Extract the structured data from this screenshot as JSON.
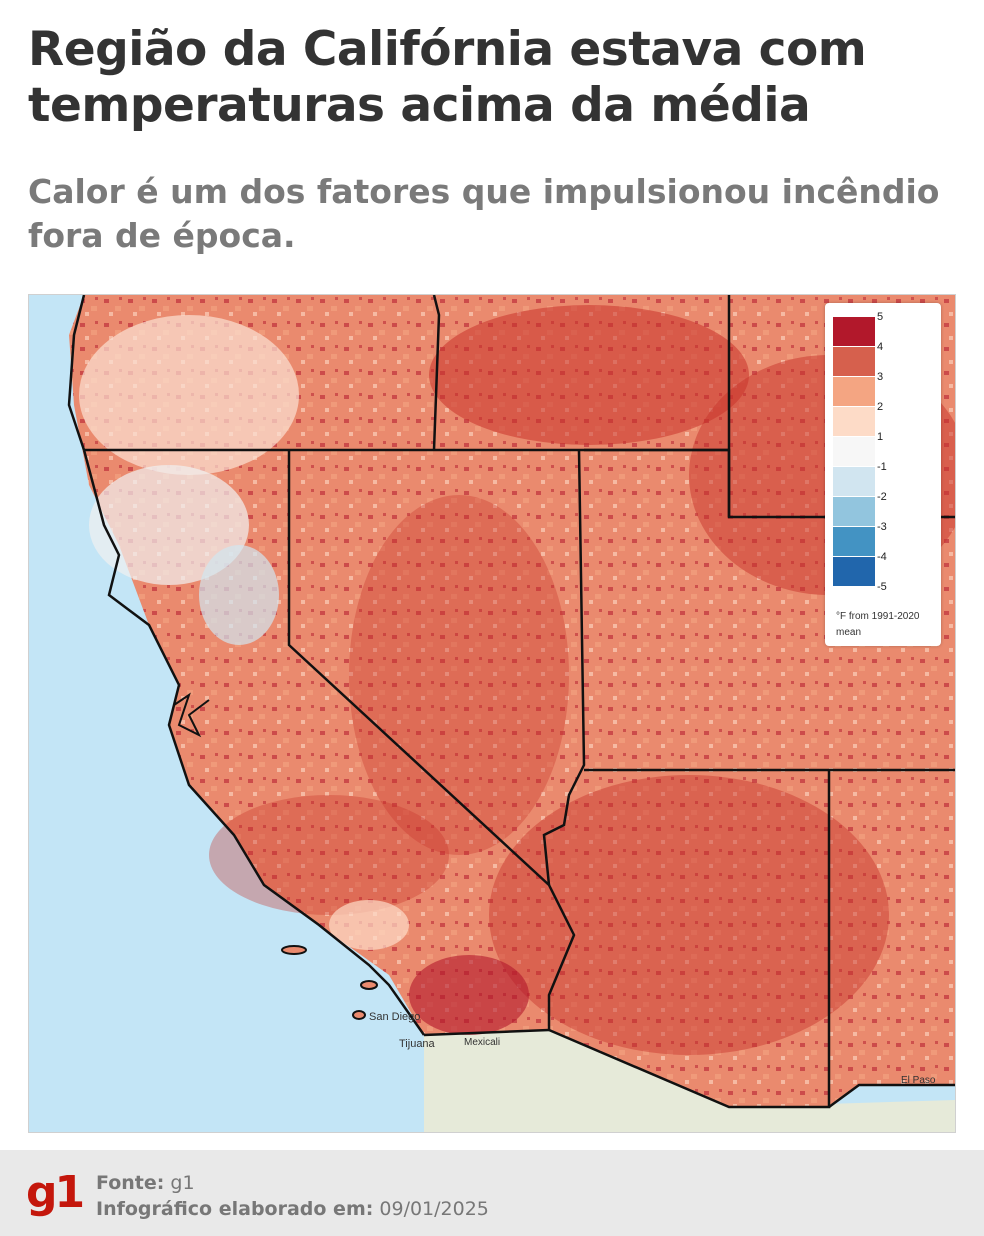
{
  "header": {
    "title": "Região da Califórnia estava com temperaturas acima da média",
    "subtitle": "Calor é um dos fatores que impulsionou incêndio fora de época."
  },
  "map": {
    "legend": {
      "items": [
        {
          "label": "5",
          "color": "#b2182b"
        },
        {
          "label": "4",
          "color": "#d6604d"
        },
        {
          "label": "3",
          "color": "#f4a582"
        },
        {
          "label": "2",
          "color": "#fddbc7"
        },
        {
          "label": "1",
          "color": "#f7f7f7"
        },
        {
          "label": "-1",
          "color": "#d1e5f0"
        },
        {
          "label": "-2",
          "color": "#92c5de"
        },
        {
          "label": "-3",
          "color": "#4393c3"
        },
        {
          "label": "-4",
          "color": "#2166ac"
        },
        {
          "label": "-5",
          "color": ""
        }
      ],
      "note": "°F from 1991-2020 mean"
    },
    "cities": {
      "san_diego": "San Diego",
      "tijuana": "Tijuana",
      "mexicali": "Mexicali",
      "el_paso": "El Paso"
    }
  },
  "footer": {
    "logo": "g1",
    "source_label": "Fonte:",
    "source_value": "g1",
    "date_label": "Infográfico elaborado em:",
    "date_value": "09/01/2025"
  }
}
